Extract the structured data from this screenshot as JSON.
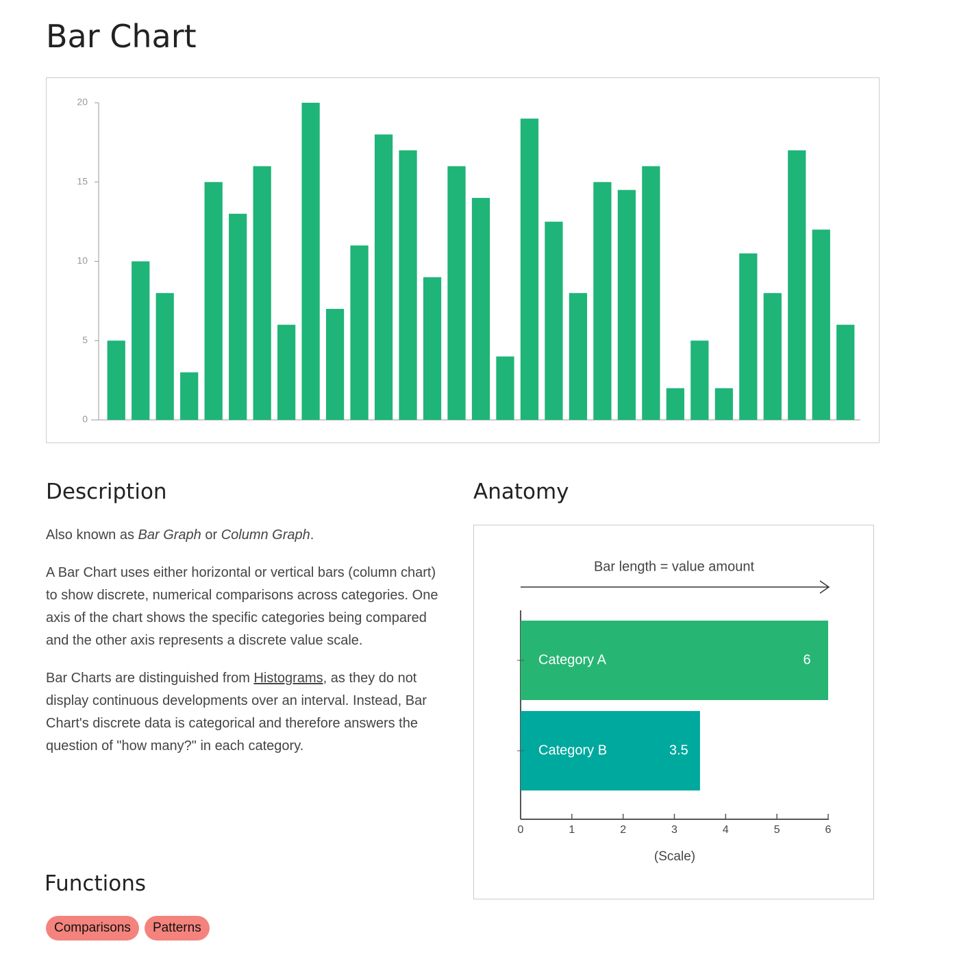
{
  "title": "Bar Chart",
  "chart_data": [
    {
      "type": "bar",
      "categories": [
        null,
        null,
        null,
        null,
        null,
        null,
        null,
        null,
        null,
        null,
        null,
        null,
        null,
        null,
        null,
        null,
        null,
        null,
        null,
        null,
        null,
        null,
        null,
        null,
        null,
        null,
        null,
        null,
        null,
        null,
        null
      ],
      "values": [
        5,
        10,
        8,
        3,
        15,
        13,
        16,
        6,
        20,
        7,
        11,
        18,
        17,
        9,
        16,
        14,
        4,
        19,
        12.5,
        8,
        15,
        14.5,
        16,
        2,
        5,
        2,
        10.5,
        8,
        17,
        12,
        6
      ],
      "color": "#1fb478",
      "ylim": [
        0,
        20
      ],
      "yticks": [
        0,
        5,
        10,
        15,
        20
      ]
    },
    {
      "type": "barh",
      "annotation": "Bar length = value amount",
      "categories": [
        "Category A",
        "Category B"
      ],
      "values": [
        6,
        3.5
      ],
      "colors": [
        "#27b574",
        "#00a99d"
      ],
      "xlim": [
        0,
        6
      ],
      "xticks": [
        0,
        1,
        2,
        3,
        4,
        5,
        6
      ],
      "xlabel": "(Scale)"
    }
  ],
  "description": {
    "heading": "Description",
    "paragraphs": [
      [
        "Also known as ",
        "Bar Graph",
        " or ",
        "Column Graph",
        "."
      ],
      [
        "A Bar Chart uses either horizontal or vertical bars (column chart) to show discrete, numerical comparisons across categories. One axis of the chart shows the specific categories being compared and the other axis represents a discrete value scale."
      ],
      [
        "Bar Charts are distinguished from ",
        "Histograms",
        ", as they do not display continuous developments over an interval. Instead, Bar Chart's discrete data is categorical and therefore answers the question of \"how many?\" in each category."
      ]
    ]
  },
  "anatomy": {
    "heading": "Anatomy"
  },
  "functions": {
    "heading": "Functions",
    "tags": [
      "Comparisons",
      "Patterns"
    ]
  }
}
